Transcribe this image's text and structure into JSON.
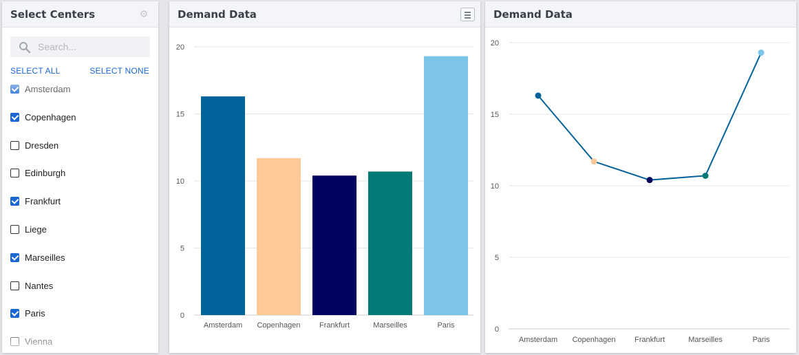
{
  "centers_panel": {
    "title": "Select Centers",
    "gear_icon": "gear-icon",
    "search": {
      "placeholder": "Search...",
      "value": ""
    },
    "select_all": "SELECT ALL",
    "select_none": "SELECT NONE",
    "items": [
      {
        "label": "Amsterdam",
        "checked": true
      },
      {
        "label": "Copenhagen",
        "checked": true
      },
      {
        "label": "Dresden",
        "checked": false
      },
      {
        "label": "Edinburgh",
        "checked": false
      },
      {
        "label": "Frankfurt",
        "checked": true
      },
      {
        "label": "Liege",
        "checked": false
      },
      {
        "label": "Marseilles",
        "checked": true
      },
      {
        "label": "Nantes",
        "checked": false
      },
      {
        "label": "Paris",
        "checked": true
      },
      {
        "label": "Vienna",
        "checked": false
      }
    ],
    "accent_color": "#1a67d2"
  },
  "bar_panel": {
    "title": "Demand Data",
    "menu_icon": "hamburger-menu-icon"
  },
  "line_panel": {
    "title": "Demand Data"
  },
  "chart_data": [
    {
      "type": "bar",
      "categories": [
        "Amsterdam",
        "Copenhagen",
        "Frankfurt",
        "Marseilles",
        "Paris"
      ],
      "values": [
        16.3,
        11.7,
        10.4,
        10.7,
        19.3
      ],
      "colors": [
        "#02639b",
        "#fec898",
        "#02035e",
        "#027a77",
        "#7cc4e8"
      ],
      "ylim": [
        0,
        20
      ],
      "yticks": [
        "0",
        "5",
        "10",
        "15",
        "20"
      ],
      "grid": true
    },
    {
      "type": "line",
      "categories": [
        "Amsterdam",
        "Copenhagen",
        "Frankfurt",
        "Marseilles",
        "Paris"
      ],
      "values": [
        16.3,
        11.7,
        10.4,
        10.7,
        19.3
      ],
      "point_colors": [
        "#02639b",
        "#fec898",
        "#02035e",
        "#027a77",
        "#7cc4e8"
      ],
      "line_color": "#02639b",
      "ylim": [
        0,
        20
      ],
      "yticks": [
        "0",
        "5",
        "10",
        "15",
        "20"
      ],
      "grid": true
    }
  ]
}
